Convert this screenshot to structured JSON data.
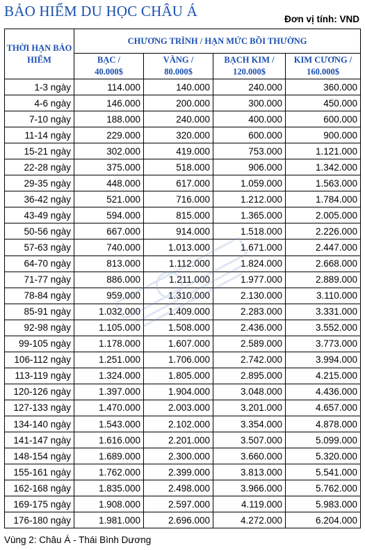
{
  "title": "BẢO HIỂM DU HỌC CHÂU Á",
  "unit_label": "Đơn vị tính: VND",
  "header": {
    "period": "THỜI HẠN BẢO HIỂM",
    "group": "CHƯƠNG TRÌNH / HẠN MỨC BỒI THƯỜNG",
    "plans": [
      {
        "name": "BẠC /",
        "limit": "40.000$"
      },
      {
        "name": "VÀNG /",
        "limit": "80.000$"
      },
      {
        "name": "BẠCH KIM /",
        "limit": "120.000$"
      },
      {
        "name": "KIM CƯƠNG /",
        "limit": "160.000$"
      }
    ]
  },
  "rows": [
    {
      "days": "1-3 ngày",
      "bac": "114.000",
      "vang": "140.000",
      "bachkim": "240.000",
      "kimcuong": "360.000"
    },
    {
      "days": "4-6 ngày",
      "bac": "146.000",
      "vang": "200.000",
      "bachkim": "300.000",
      "kimcuong": "450.000"
    },
    {
      "days": "7-10 ngày",
      "bac": "188.000",
      "vang": "240.000",
      "bachkim": "400.000",
      "kimcuong": "600.000"
    },
    {
      "days": "11-14 ngày",
      "bac": "229.000",
      "vang": "320.000",
      "bachkim": "600.000",
      "kimcuong": "900.000"
    },
    {
      "days": "15-21 ngày",
      "bac": "302.000",
      "vang": "419.000",
      "bachkim": "753.000",
      "kimcuong": "1.121.000"
    },
    {
      "days": "22-28 ngày",
      "bac": "375.000",
      "vang": "518.000",
      "bachkim": "906.000",
      "kimcuong": "1.342.000"
    },
    {
      "days": "29-35 ngày",
      "bac": "448.000",
      "vang": "617.000",
      "bachkim": "1.059.000",
      "kimcuong": "1.563.000"
    },
    {
      "days": "36-42 ngày",
      "bac": "521.000",
      "vang": "716.000",
      "bachkim": "1.212.000",
      "kimcuong": "1.784.000"
    },
    {
      "days": "43-49 ngày",
      "bac": "594.000",
      "vang": "815.000",
      "bachkim": "1.365.000",
      "kimcuong": "2.005.000"
    },
    {
      "days": "50-56 ngày",
      "bac": "667.000",
      "vang": "914.000",
      "bachkim": "1.518.000",
      "kimcuong": "2.226.000"
    },
    {
      "days": "57-63 ngày",
      "bac": "740.000",
      "vang": "1.013.000",
      "bachkim": "1.671.000",
      "kimcuong": "2.447.000"
    },
    {
      "days": "64-70 ngày",
      "bac": "813.000",
      "vang": "1.112.000",
      "bachkim": "1.824.000",
      "kimcuong": "2.668.000"
    },
    {
      "days": "71-77 ngày",
      "bac": "886.000",
      "vang": "1.211.000",
      "bachkim": "1.977.000",
      "kimcuong": "2.889.000"
    },
    {
      "days": "78-84 ngày",
      "bac": "959.000",
      "vang": "1.310.000",
      "bachkim": "2.130.000",
      "kimcuong": "3.110.000"
    },
    {
      "days": "85-91 ngày",
      "bac": "1.032.000",
      "vang": "1.409.000",
      "bachkim": "2.283.000",
      "kimcuong": "3.331.000"
    },
    {
      "days": "92-98 ngày",
      "bac": "1.105.000",
      "vang": "1.508.000",
      "bachkim": "2.436.000",
      "kimcuong": "3.552.000"
    },
    {
      "days": "99-105 ngày",
      "bac": "1.178.000",
      "vang": "1.607.000",
      "bachkim": "2.589.000",
      "kimcuong": "3.773.000"
    },
    {
      "days": "106-112 ngày",
      "bac": "1.251.000",
      "vang": "1.706.000",
      "bachkim": "2.742.000",
      "kimcuong": "3.994.000"
    },
    {
      "days": "113-119 ngày",
      "bac": "1.324.000",
      "vang": "1.805.000",
      "bachkim": "2.895.000",
      "kimcuong": "4.215.000"
    },
    {
      "days": "120-126 ngày",
      "bac": "1.397.000",
      "vang": "1.904.000",
      "bachkim": "3.048.000",
      "kimcuong": "4.436.000"
    },
    {
      "days": "127-133 ngày",
      "bac": "1.470.000",
      "vang": "2.003.000",
      "bachkim": "3.201.000",
      "kimcuong": "4.657.000"
    },
    {
      "days": "134-140 ngày",
      "bac": "1.543.000",
      "vang": "2.102.000",
      "bachkim": "3.354.000",
      "kimcuong": "4.878.000"
    },
    {
      "days": "141-147 ngày",
      "bac": "1.616.000",
      "vang": "2.201.000",
      "bachkim": "3.507.000",
      "kimcuong": "5.099.000"
    },
    {
      "days": "148-154 ngày",
      "bac": "1.689.000",
      "vang": "2.300.000",
      "bachkim": "3.660.000",
      "kimcuong": "5.320.000"
    },
    {
      "days": "155-161 ngày",
      "bac": "1.762.000",
      "vang": "2.399.000",
      "bachkim": "3.813.000",
      "kimcuong": "5.541.000"
    },
    {
      "days": "162-168 ngày",
      "bac": "1.835.000",
      "vang": "2.498.000",
      "bachkim": "3.966.000",
      "kimcuong": "5.762.000"
    },
    {
      "days": "169-175 ngày",
      "bac": "1.908.000",
      "vang": "2.597.000",
      "bachkim": "4.119.000",
      "kimcuong": "5.983.000"
    },
    {
      "days": "176-180 ngày",
      "bac": "1.981.000",
      "vang": "2.696.000",
      "bachkim": "4.272.000",
      "kimcuong": "6.204.000"
    }
  ],
  "footer": "Vùng 2: Châu Á - Thái Bình Dương",
  "colors": {
    "heading": "#1a4fb0",
    "watermark": "#6f8fc8"
  },
  "watermark_icon": "watermark-logo-icon"
}
